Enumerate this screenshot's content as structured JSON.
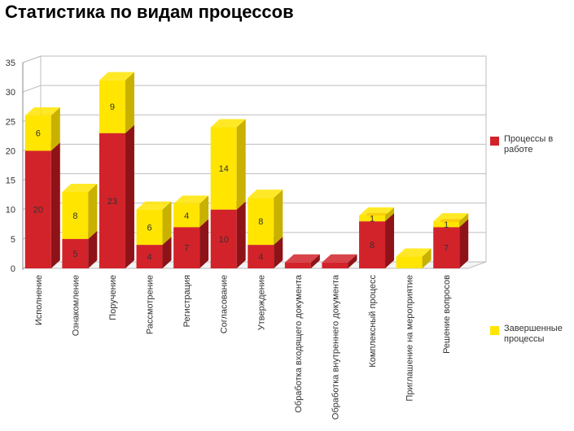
{
  "page_title": "Статистика по видам процессов",
  "chart_data": {
    "type": "bar",
    "stacked": true,
    "three_d": true,
    "categories": [
      "Исполнение",
      "Ознакомление",
      "Поручение",
      "Рассмотрение",
      "Регистрация",
      "Согласование",
      "Утверждение",
      "Обработка входящего документа",
      "Обработка внутреннего документа",
      "Комплексный процесс",
      "Приглашение на мероприятие",
      "Решение вопросов"
    ],
    "series": [
      {
        "name": "Процессы в работе",
        "color": "#D2232A",
        "dark_color": "#8E1318",
        "values": [
          20,
          5,
          23,
          4,
          7,
          10,
          4,
          1,
          1,
          8,
          0,
          7
        ],
        "labels": [
          "20",
          "5",
          "23",
          "4",
          "7",
          "10",
          "4",
          "",
          "",
          "8",
          "",
          "7"
        ]
      },
      {
        "name": "Завершенные процессы",
        "color": "#FFE500",
        "dark_color": "#C8B100",
        "values": [
          6,
          8,
          9,
          6,
          4,
          14,
          8,
          0,
          0,
          1,
          2,
          1
        ],
        "labels": [
          "6",
          "8",
          "9",
          "6",
          "4",
          "14",
          "8",
          "",
          "",
          "1",
          "",
          "1"
        ]
      }
    ],
    "yticks": [
      0,
      5,
      10,
      15,
      20,
      25,
      30,
      35
    ],
    "ylim": [
      0,
      35
    ],
    "grid": true,
    "legend_position": "right"
  }
}
